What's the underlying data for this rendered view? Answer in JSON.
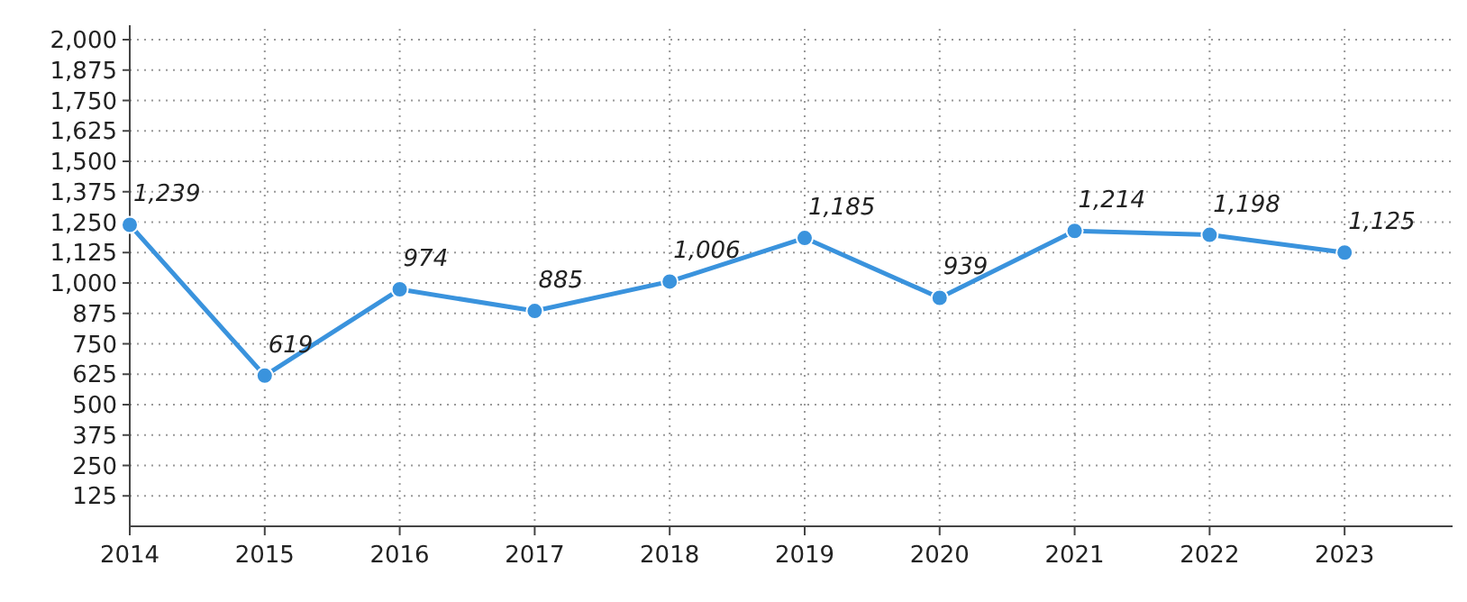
{
  "chart_data": {
    "type": "line",
    "x": [
      2014,
      2015,
      2016,
      2017,
      2018,
      2019,
      2020,
      2021,
      2022,
      2023
    ],
    "series": [
      {
        "color": "#3a93dd",
        "values": [
          1239,
          619,
          974,
          885,
          1006,
          1185,
          939,
          1214,
          1198,
          1125
        ],
        "value_labels": [
          "1,239",
          "619",
          "974",
          "885",
          "1,006",
          "1,185",
          "939",
          "1,214",
          "1,198",
          "1,125"
        ]
      }
    ],
    "xlim": [
      2014,
      2023.8
    ],
    "xticks": [
      2014,
      2015,
      2016,
      2017,
      2018,
      2019,
      2020,
      2021,
      2022,
      2023
    ],
    "ylim": [
      0,
      2000
    ],
    "yticks": [
      "125",
      "250",
      "375",
      "500",
      "625",
      "750",
      "875",
      "1,000",
      "1,125",
      "1,250",
      "1,375",
      "1,500",
      "1,625",
      "1,750",
      "1,875",
      "2,000"
    ],
    "grid": true,
    "marker": "circle",
    "line_style": "solid"
  }
}
